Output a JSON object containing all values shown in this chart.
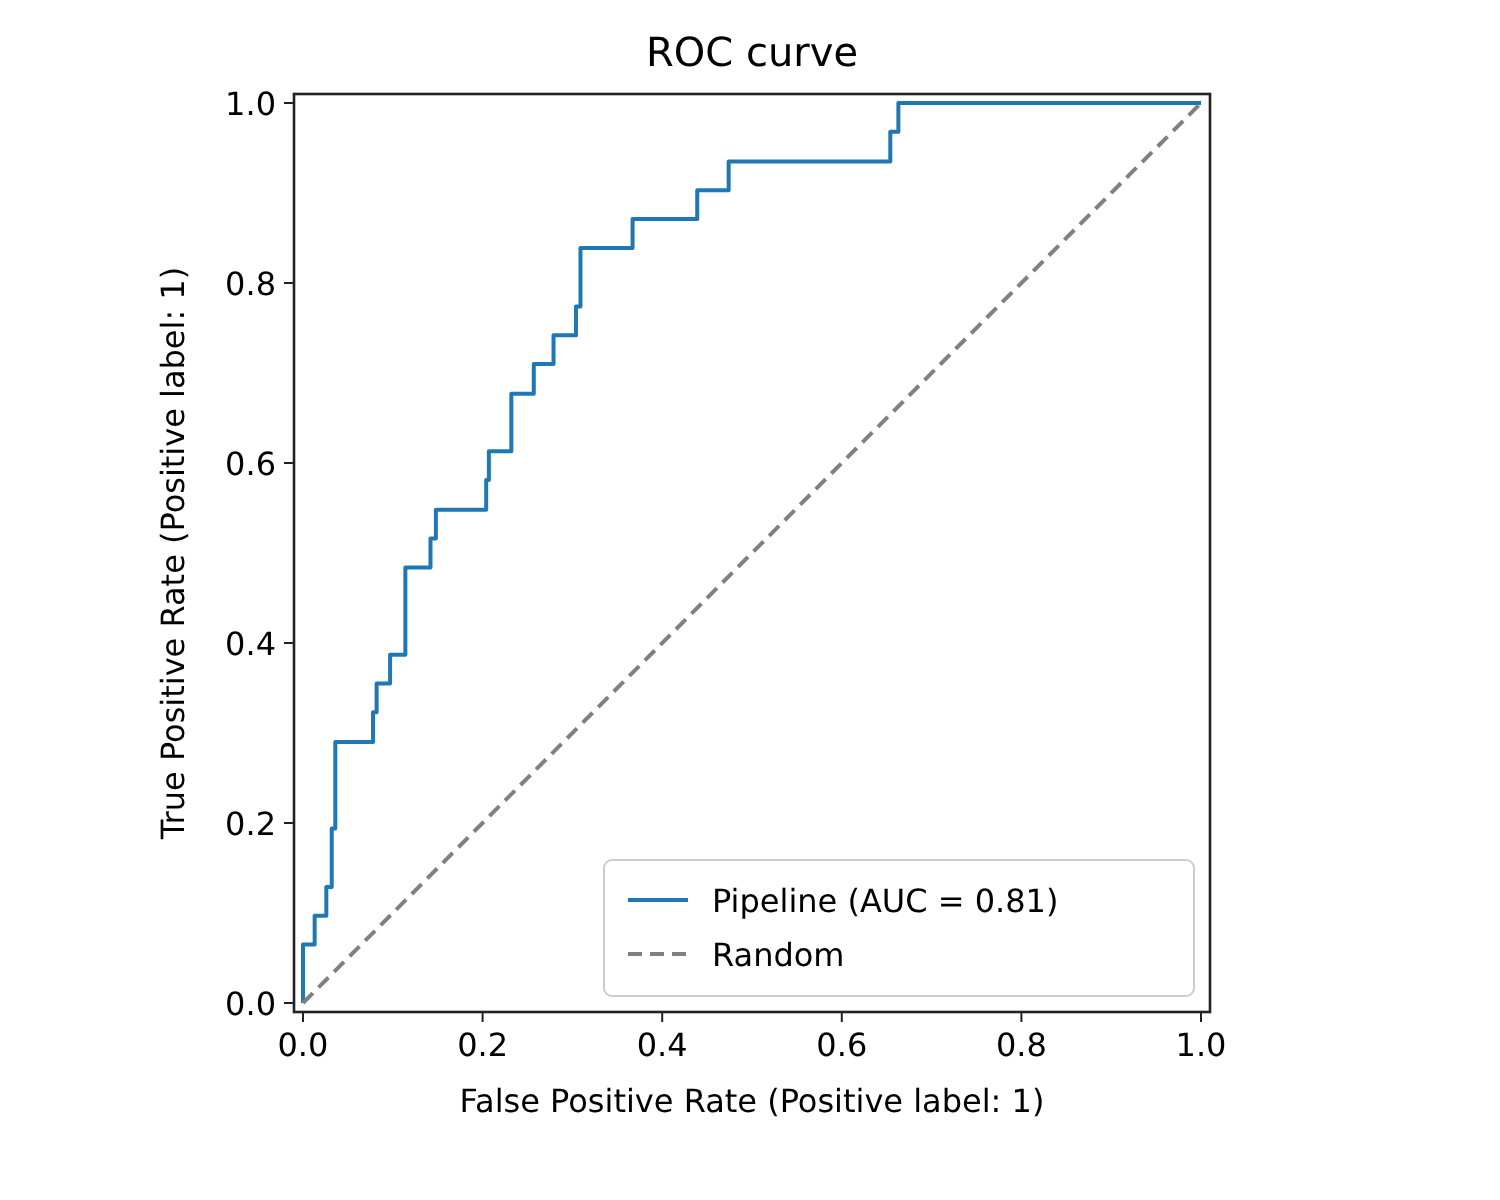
{
  "chart_data": {
    "type": "step",
    "title": "ROC curve",
    "xlabel": "False Positive Rate (Positive label: 1)",
    "ylabel": "True Positive Rate (Positive label: 1)",
    "xlim": [
      -0.01,
      1.01
    ],
    "ylim": [
      -0.01,
      1.01
    ],
    "xticks": [
      {
        "value": 0,
        "label": "0.0"
      },
      {
        "value": 0.2,
        "label": "0.2"
      },
      {
        "value": 0.4,
        "label": "0.4"
      },
      {
        "value": 0.6,
        "label": "0.6"
      },
      {
        "value": 0.8,
        "label": "0.8"
      },
      {
        "value": 1,
        "label": "1.0"
      }
    ],
    "yticks": [
      {
        "value": 0,
        "label": "0.0"
      },
      {
        "value": 0.2,
        "label": "0.2"
      },
      {
        "value": 0.4,
        "label": "0.4"
      },
      {
        "value": 0.6,
        "label": "0.6"
      },
      {
        "value": 0.8,
        "label": "0.8"
      },
      {
        "value": 1,
        "label": "1.0"
      }
    ],
    "legend": "bottom right",
    "grid": false,
    "series": [
      {
        "name": "Pipeline (AUC = 0.81)",
        "color": "#1f77b4",
        "line_style": "solid",
        "x": [
          0,
          0,
          0.013,
          0.026,
          0.032,
          0.036,
          0.078,
          0.082,
          0.097,
          0.114,
          0.142,
          0.148,
          0.204,
          0.207,
          0.232,
          0.257,
          0.279,
          0.304,
          0.309,
          0.367,
          0.439,
          0.474,
          0.654,
          0.663,
          1
        ],
        "values": [
          0,
          0.065,
          0.097,
          0.129,
          0.194,
          0.29,
          0.323,
          0.355,
          0.387,
          0.484,
          0.516,
          0.548,
          0.581,
          0.613,
          0.677,
          0.71,
          0.742,
          0.774,
          0.839,
          0.871,
          0.903,
          0.935,
          0.968,
          1,
          1
        ]
      },
      {
        "name": "Random",
        "type": "line",
        "color": "#808080",
        "line_style": "dashed",
        "x": [
          0,
          1
        ],
        "values": [
          0,
          1
        ]
      }
    ]
  }
}
